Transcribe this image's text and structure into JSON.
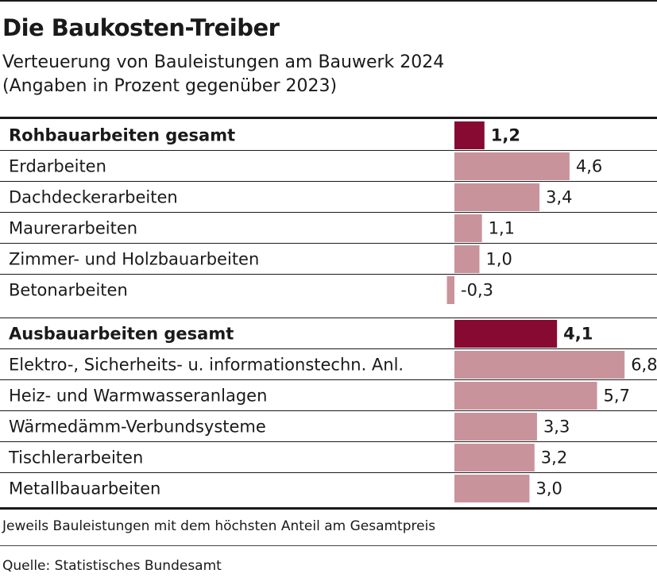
{
  "header": {
    "title": "Die Baukosten-Treiber",
    "subtitle_line1": "Verteuerung von Bauleistungen am Bauwerk 2024",
    "subtitle_line2": "(Angaben in Prozent gegenüber 2023)"
  },
  "colors": {
    "total_bar": "#870a33",
    "item_bar": "#c9939b",
    "rule": "#1a1a1a"
  },
  "chart_data": {
    "type": "bar",
    "orientation": "horizontal",
    "title": "Die Baukosten-Treiber",
    "subtitle": "Verteuerung von Bauleistungen am Bauwerk 2024 (Angaben in Prozent gegenüber 2023)",
    "xlabel": "",
    "ylabel": "",
    "grid": false,
    "legend": "none",
    "groups": [
      {
        "total": {
          "label": "Rohbauarbeiten gesamt",
          "value": 1.2,
          "display": "1,2"
        },
        "items": [
          {
            "label": "Erdarbeiten",
            "value": 4.6,
            "display": "4,6"
          },
          {
            "label": "Dachdeckerarbeiten",
            "value": 3.4,
            "display": "3,4"
          },
          {
            "label": "Maurerarbeiten",
            "value": 1.1,
            "display": "1,1"
          },
          {
            "label": "Zimmer- und Holzbauarbeiten",
            "value": 1.0,
            "display": "1,0"
          },
          {
            "label": "Betonarbeiten",
            "value": -0.3,
            "display": "-0,3"
          }
        ]
      },
      {
        "total": {
          "label": "Ausbauarbeiten gesamt",
          "value": 4.1,
          "display": "4,1"
        },
        "items": [
          {
            "label": "Elektro-, Sicherheits- u. informationstechn. Anl.",
            "value": 6.8,
            "display": "6,8"
          },
          {
            "label": "Heiz- und Warmwasseranlagen",
            "value": 5.7,
            "display": "5,7"
          },
          {
            "label": "Wärmedämm-Verbundsysteme",
            "value": 3.3,
            "display": "3,3"
          },
          {
            "label": "Tischlerarbeiten",
            "value": 3.2,
            "display": "3,2"
          },
          {
            "label": "Metallbauarbeiten",
            "value": 3.0,
            "display": "3,0"
          }
        ]
      }
    ]
  },
  "footer": {
    "note": "Jeweils Bauleistungen mit dem höchsten Anteil am Gesamtpreis",
    "source": "Quelle: Statistisches Bundesamt"
  }
}
